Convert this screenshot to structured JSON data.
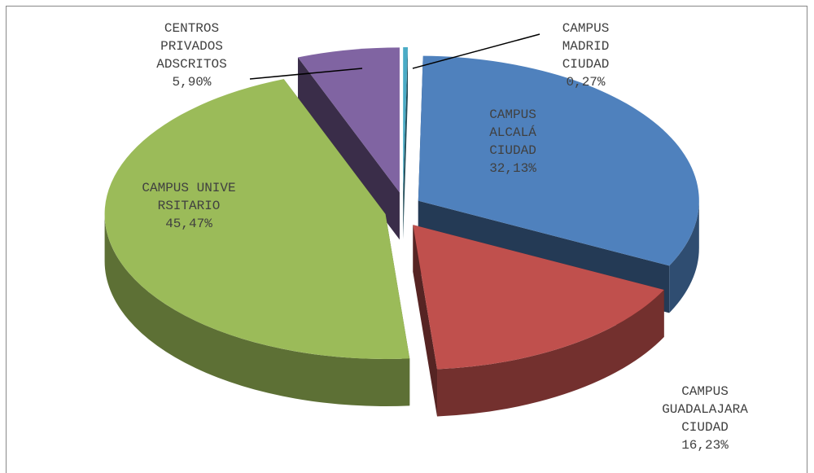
{
  "chart_data": {
    "type": "pie3d",
    "categories": [
      "CAMPUS MADRID CIUDAD",
      "CAMPUS ALCALÁ CIUDAD",
      "CAMPUS GUADALAJARA CIUDAD",
      "CAMPUS UNIVERSITARIO",
      "CENTROS PRIVADOS ADSCRITOS"
    ],
    "values": [
      0.27,
      32.13,
      16.23,
      45.47,
      5.9
    ],
    "value_labels": [
      "0,27%",
      "32,13%",
      "16,23%",
      "45,47%",
      "5,90%"
    ],
    "colors": [
      "#4bacc6",
      "#4f81bd",
      "#c0504d",
      "#9bbb59",
      "#8064a2"
    ]
  }
}
